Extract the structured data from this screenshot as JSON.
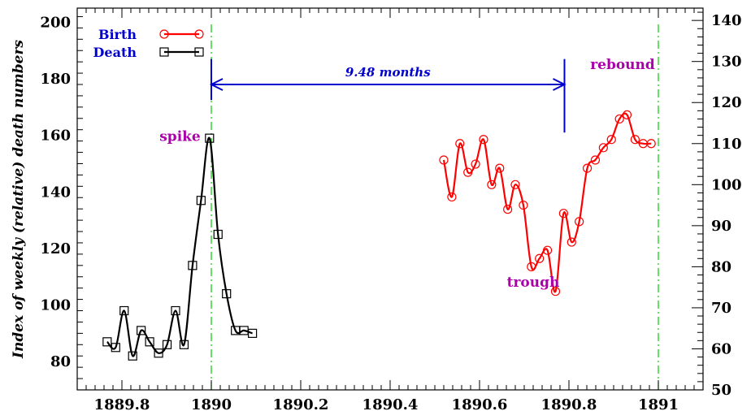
{
  "chart_data": {
    "type": "line",
    "title": "",
    "ylabel_left": "Index of weekly (relative) death numbers",
    "ylabel_right": "",
    "xlim": [
      1889.7,
      1891.1
    ],
    "ylim_left": [
      70,
      205
    ],
    "ylim_right": [
      50,
      143
    ],
    "x_ticks": [
      1889.8,
      1890,
      1890.2,
      1890.4,
      1890.6,
      1890.8,
      1891
    ],
    "x_tick_labels": [
      "1889.8",
      "1890",
      "1890.2",
      "1890.4",
      "1890.6",
      "1890.8",
      "1891"
    ],
    "y_left_ticks": [
      80,
      100,
      120,
      140,
      160,
      180,
      200
    ],
    "y_right_ticks": [
      50,
      60,
      70,
      80,
      90,
      100,
      110,
      120,
      130,
      140
    ],
    "grid": false,
    "legend_position": "top-left",
    "series": [
      {
        "name": "Birth",
        "axis": "right",
        "color": "#ff0000",
        "marker": "circle",
        "x": [
          1890.52,
          1890.538,
          1890.556,
          1890.574,
          1890.591,
          1890.609,
          1890.627,
          1890.645,
          1890.663,
          1890.68,
          1890.698,
          1890.716,
          1890.734,
          1890.752,
          1890.77,
          1890.788,
          1890.806,
          1890.823,
          1890.841,
          1890.859,
          1890.877,
          1890.895,
          1890.913,
          1890.93,
          1890.948,
          1890.966,
          1890.984
        ],
        "values": [
          106,
          97,
          110,
          103,
          105,
          111,
          100,
          104,
          94,
          100,
          95,
          80,
          82,
          84,
          74,
          93,
          86,
          91,
          104,
          106,
          109,
          111,
          116,
          117,
          111,
          110,
          110
        ]
      },
      {
        "name": "Death",
        "axis": "left",
        "color": "#000000",
        "marker": "square",
        "x": [
          1889.767,
          1889.786,
          1889.805,
          1889.824,
          1889.843,
          1889.862,
          1889.882,
          1889.901,
          1889.92,
          1889.939,
          1889.958,
          1889.977,
          1889.996,
          1890.015,
          1890.034,
          1890.054,
          1890.073,
          1890.092
        ],
        "values": [
          87,
          85,
          98,
          82,
          91,
          87,
          83,
          86,
          98,
          86,
          114,
          137,
          159,
          125,
          104,
          91,
          91,
          90
        ]
      }
    ],
    "vertical_lines": [
      1890,
      1891
    ],
    "interval": {
      "from": 1890,
      "to": 1890.79,
      "label": "9.48 months"
    },
    "annotations": [
      {
        "text": "spike",
        "x": 1889.93,
        "y": 158
      },
      {
        "text": "trough",
        "x": 1890.72,
        "y": 106.5
      },
      {
        "text": "rebound",
        "x": 1890.92,
        "y": 183.5
      }
    ]
  }
}
